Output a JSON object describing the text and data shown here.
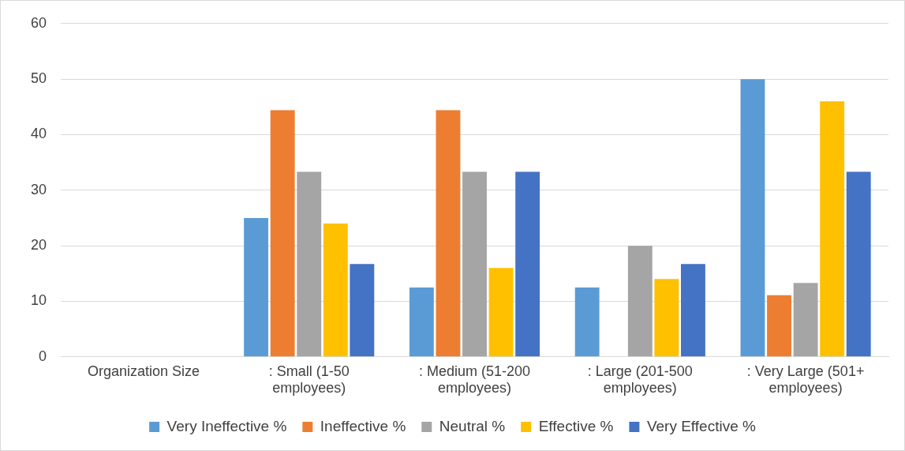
{
  "chart_data": {
    "type": "bar",
    "categories": [
      "Organization Size",
      ": Small (1-50 employees)",
      ": Medium (51-200 employees)",
      ": Large (201-500 employees)",
      ": Very Large (501+ employees)"
    ],
    "series": [
      {
        "name": "Very Ineffective %",
        "color": "#5b9bd5",
        "values": [
          null,
          25,
          12.5,
          12.5,
          50
        ]
      },
      {
        "name": "Ineffective %",
        "color": "#ed7d31",
        "values": [
          null,
          44.4,
          44.4,
          0,
          11.1
        ]
      },
      {
        "name": "Neutral %",
        "color": "#a5a5a5",
        "values": [
          null,
          33.3,
          33.3,
          20,
          13.3
        ]
      },
      {
        "name": "Effective %",
        "color": "#ffc000",
        "values": [
          null,
          24,
          16,
          14,
          46
        ]
      },
      {
        "name": "Very Effective %",
        "color": "#4472c4",
        "values": [
          null,
          16.7,
          33.3,
          16.7,
          33.3
        ]
      }
    ],
    "ylim": [
      0,
      60
    ],
    "yticks": [
      0,
      10,
      20,
      30,
      40,
      50,
      60
    ],
    "grid": "y",
    "legend": "bottom"
  }
}
